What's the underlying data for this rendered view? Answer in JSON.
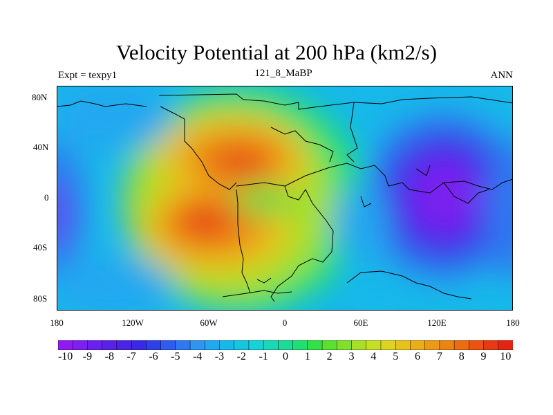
{
  "header": {
    "title": "Velocity Potential at 200 hPa (km2/s)",
    "left_subtitle": "Expt = texpy1",
    "center_subtitle": "121_8_MaBP",
    "right_subtitle": "ANN"
  },
  "chart_data": {
    "type": "heatmap",
    "title": "Velocity Potential at 200 hPa (km2/s)",
    "xlabel": "",
    "ylabel": "",
    "xlim": [
      -180,
      180
    ],
    "ylim": [
      -90,
      90
    ],
    "x_ticks": [
      "180",
      "120W",
      "60W",
      "0",
      "60E",
      "120E",
      "180"
    ],
    "y_ticks": [
      "80N",
      "40N",
      "0",
      "40S",
      "80S"
    ],
    "approx_extrema": [
      {
        "lon": -35,
        "lat": 28,
        "value": 9.5
      },
      {
        "lon": -55,
        "lat": -15,
        "value": 9.5
      },
      {
        "lon": 140,
        "lat": 0,
        "value": -10
      },
      {
        "lon": -178,
        "lat": -15,
        "value": -9
      }
    ],
    "colorbar": {
      "labels": [
        "-10",
        "-9",
        "-8",
        "-7",
        "-6",
        "-5",
        "-4",
        "-3",
        "-2",
        "-1",
        "0",
        "1",
        "2",
        "3",
        "4",
        "5",
        "6",
        "7",
        "8",
        "9",
        "10"
      ],
      "colors": [
        "#8f1bf0",
        "#7b20f0",
        "#6a20f0",
        "#5a20e6",
        "#4a24e4",
        "#3a28e6",
        "#2e40ec",
        "#2f5bf0",
        "#2f78f0",
        "#2f95f0",
        "#20a8f0",
        "#17b8ea",
        "#14c6e0",
        "#14d2d6",
        "#18d8b8",
        "#1adc96",
        "#1ee070",
        "#32e048",
        "#5ae030",
        "#80e02c",
        "#a6e028",
        "#c6de24",
        "#dcd41e",
        "#e8c21a",
        "#ecae16",
        "#ec9a14",
        "#ec8412",
        "#ec6c12",
        "#ec5212",
        "#e83a12",
        "#e42410"
      ]
    }
  }
}
